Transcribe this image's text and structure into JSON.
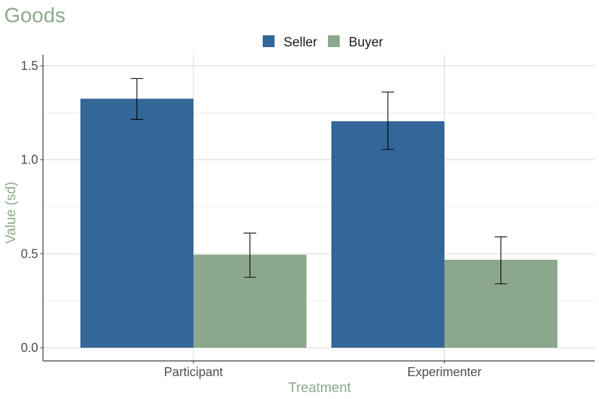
{
  "chart_data": {
    "type": "bar",
    "title": "Goods",
    "xlabel": "Treatment",
    "ylabel": "Value (sd)",
    "categories": [
      "Participant",
      "Experimenter"
    ],
    "ylim": [
      0,
      1.5
    ],
    "yticks": [
      0.0,
      0.5,
      1.0,
      1.5
    ],
    "ytick_labels": [
      "0.0",
      "0.5",
      "1.0",
      "1.5"
    ],
    "grid": true,
    "legend_position": "top",
    "series": [
      {
        "name": "Seller",
        "color": "#336699",
        "values": [
          1.325,
          1.205
        ],
        "error_low": [
          1.215,
          1.055
        ],
        "error_high": [
          1.432,
          1.36
        ]
      },
      {
        "name": "Buyer",
        "color": "#8ca88c",
        "values": [
          0.495,
          0.468
        ],
        "error_low": [
          0.375,
          0.34
        ],
        "error_high": [
          0.61,
          0.59
        ]
      }
    ]
  }
}
